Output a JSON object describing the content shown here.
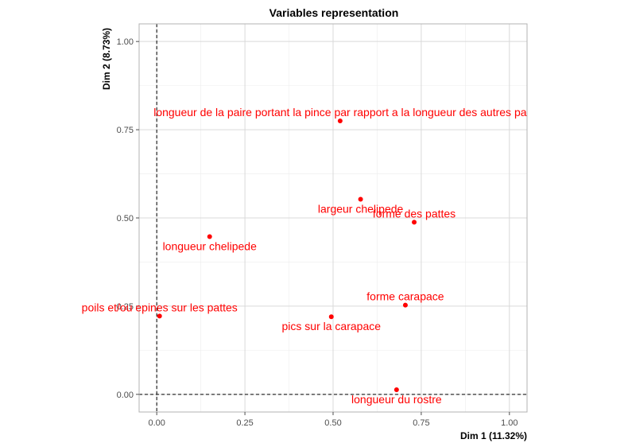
{
  "chart_data": {
    "type": "scatter",
    "title": "Variables representation",
    "xlabel": "Dim 1 (11.32%)",
    "ylabel": "Dim 2 (8.73%)",
    "xlim": [
      -0.05,
      1.05
    ],
    "ylim": [
      -0.05,
      1.05
    ],
    "x_ticks": [
      0.0,
      0.25,
      0.5,
      0.75,
      1.0
    ],
    "y_ticks": [
      0.0,
      0.25,
      0.5,
      0.75,
      1.0
    ],
    "x_tick_labels": [
      "0.00",
      "0.25",
      "0.50",
      "0.75",
      "1.00"
    ],
    "y_tick_labels": [
      "0.00",
      "0.25",
      "0.50",
      "0.75",
      "1.00"
    ],
    "grid": true,
    "reference_lines": {
      "x": 0,
      "y": 0,
      "style": "dashed"
    },
    "point_color": "#ff0000",
    "points": [
      {
        "label": "longueur de la paire portant la pince par rapport a la longueur des autres pa",
        "x": 0.52,
        "y": 0.775,
        "label_pos": "above"
      },
      {
        "label": "largeur chelipede",
        "x": 0.578,
        "y": 0.553,
        "label_pos": "below"
      },
      {
        "label": "forme des pattes",
        "x": 0.73,
        "y": 0.488,
        "label_pos": "above"
      },
      {
        "label": "longueur chelipede",
        "x": 0.15,
        "y": 0.447,
        "label_pos": "below"
      },
      {
        "label": "forme carapace",
        "x": 0.705,
        "y": 0.253,
        "label_pos": "above"
      },
      {
        "label": "poils et/ou epines sur les pattes",
        "x": 0.008,
        "y": 0.222,
        "label_pos": "above"
      },
      {
        "label": "pics sur la carapace",
        "x": 0.495,
        "y": 0.22,
        "label_pos": "below"
      },
      {
        "label": "longueur du rostre",
        "x": 0.68,
        "y": 0.013,
        "label_pos": "below"
      }
    ]
  }
}
